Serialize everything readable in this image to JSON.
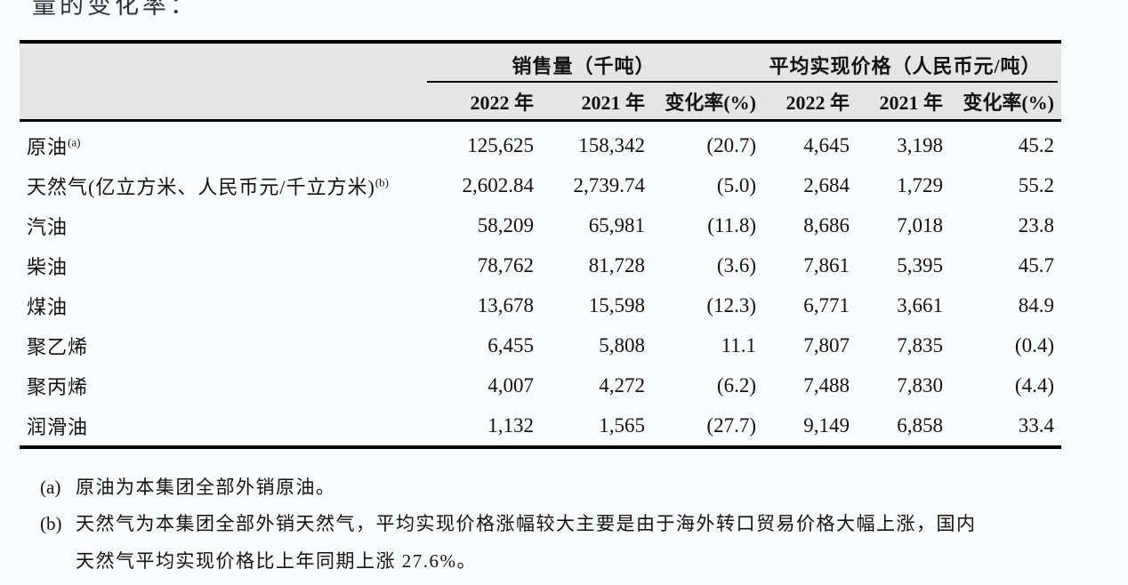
{
  "page": {
    "top_partial_text": "量的变化率："
  },
  "colors": {
    "header_bg": "#e5e5e6",
    "rule": "#000000",
    "page_bg": "#fbfcfe",
    "text": "#121212"
  },
  "table": {
    "col_groups": [
      {
        "label": "销售量（千吨）"
      },
      {
        "label": "平均实现价格（人民币元/吨）"
      }
    ],
    "columns": [
      "2022 年",
      "2021 年",
      "变化率(%)",
      "2022 年",
      "2021 年",
      "变化率(%)"
    ],
    "rows": [
      {
        "label": "原油",
        "sup": "(a)",
        "values": [
          "125,625",
          "158,342",
          "(20.7)",
          "4,645",
          "3,198",
          "45.2"
        ]
      },
      {
        "label": "天然气(亿立方米、人民币元/千立方米)",
        "sup": "(b)",
        "values": [
          "2,602.84",
          "2,739.74",
          "(5.0)",
          "2,684",
          "1,729",
          "55.2"
        ]
      },
      {
        "label": "汽油",
        "sup": "",
        "values": [
          "58,209",
          "65,981",
          "(11.8)",
          "8,686",
          "7,018",
          "23.8"
        ]
      },
      {
        "label": "柴油",
        "sup": "",
        "values": [
          "78,762",
          "81,728",
          "(3.6)",
          "7,861",
          "5,395",
          "45.7"
        ]
      },
      {
        "label": "煤油",
        "sup": "",
        "values": [
          "13,678",
          "15,598",
          "(12.3)",
          "6,771",
          "3,661",
          "84.9"
        ]
      },
      {
        "label": "聚乙烯",
        "sup": "",
        "values": [
          "6,455",
          "5,808",
          "11.1",
          "7,807",
          "7,835",
          "(0.4)"
        ]
      },
      {
        "label": "聚丙烯",
        "sup": "",
        "values": [
          "4,007",
          "4,272",
          "(6.2)",
          "7,488",
          "7,830",
          "(4.4)"
        ]
      },
      {
        "label": "润滑油",
        "sup": "",
        "values": [
          "1,132",
          "1,565",
          "(27.7)",
          "9,149",
          "6,858",
          "33.4"
        ]
      }
    ]
  },
  "footnotes": {
    "a": {
      "marker": "(a)",
      "lines": [
        "原油为本集团全部外销原油。"
      ]
    },
    "b": {
      "marker": "(b)",
      "lines": [
        "天然气为本集团全部外销天然气，平均实现价格涨幅较大主要是由于海外转口贸易价格大幅上涨，国内",
        "天然气平均实现价格比上年同期上涨 27.6%。"
      ]
    }
  }
}
